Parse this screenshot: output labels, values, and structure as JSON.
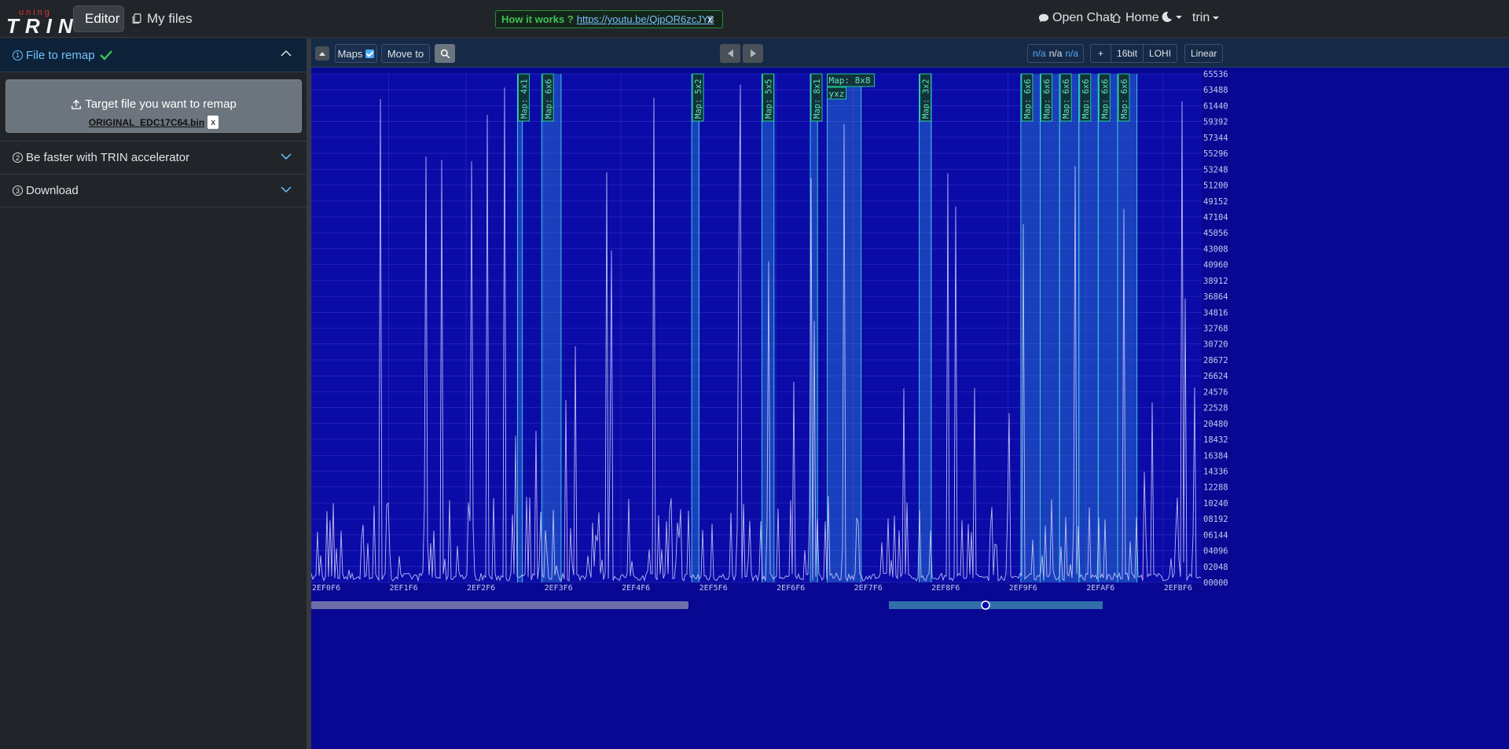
{
  "brand": {
    "small": "uning",
    "big": "RIN",
    "initial": "T"
  },
  "nav": {
    "editor": "Editor",
    "myfiles": "My files"
  },
  "banner": {
    "lead": "How it works ?",
    "link": "https://youtu.be/QjpOR6zcJY8",
    "close": "x"
  },
  "right_nav": {
    "chat": "Open Chat",
    "home": "Home",
    "user": "trin"
  },
  "sidebar": {
    "sections": [
      {
        "num": "1",
        "label": "File to remap",
        "open": true
      },
      {
        "num": "2",
        "label": "Be faster with TRIN accelerator",
        "open": false
      },
      {
        "num": "3",
        "label": "Download",
        "open": false
      }
    ],
    "upload_label": "Target file you want to remap",
    "file_name": "ORIGINAL_EDC17C64.bin",
    "remove": "x"
  },
  "toolbar": {
    "maps": "Maps",
    "maps_checked": true,
    "move_to": "Move to",
    "na1": "n/a",
    "na2": "n/a",
    "na3": "n/a",
    "plus": "+",
    "bits": "16bit",
    "order": "LOHI",
    "scale": "Linear"
  },
  "chart_data": {
    "type": "line",
    "x_ticks": [
      "2EF0F6",
      "2EF1F6",
      "2EF2F6",
      "2EF3F6",
      "2EF4F6",
      "2EF5F6",
      "2EF6F6",
      "2EF7F6",
      "2EF8F6",
      "2EF9F6",
      "2EFAF6",
      "2EFBF6"
    ],
    "y_ticks": [
      "65536",
      "63488",
      "61440",
      "59392",
      "57344",
      "55296",
      "53248",
      "51200",
      "49152",
      "47104",
      "45056",
      "43008",
      "40960",
      "38912",
      "36864",
      "34816",
      "32768",
      "30720",
      "28672",
      "26624",
      "24576",
      "22528",
      "20480",
      "18432",
      "16384",
      "14336",
      "12288",
      "10240",
      "08192",
      "06144",
      "04096",
      "02048",
      "00000"
    ],
    "ylim": [
      0,
      65536
    ],
    "map_labels": [
      {
        "label": "Map: 4x1",
        "x_start": "2EF3A0",
        "x_end": "2EF3B0"
      },
      {
        "label": "Map: 6x6",
        "x_start": "2EF3F0",
        "x_end": "2EF430"
      },
      {
        "label": "Map: 5x2",
        "x_start": "2EF5E0",
        "x_end": "2EF5F8"
      },
      {
        "label": "Map: 5x5",
        "x_start": "2EF6C8",
        "x_end": "2EF6F0"
      },
      {
        "label": "Map: 8x1",
        "x_start": "2EF768",
        "x_end": "2EF780"
      },
      {
        "label": "Map: 8x8",
        "x_start": "2EF7A0",
        "x_end": "2EF810"
      },
      {
        "label": "Map: 3x2",
        "x_start": "2EF8D0",
        "x_end": "2EF8F8"
      },
      {
        "label": "Map: 6x6",
        "x_start": "2EFA20",
        "x_end": "2EFA60"
      },
      {
        "label": "Map: 6x6",
        "x_start": "2EFA60",
        "x_end": "2EFAA0"
      },
      {
        "label": "Map: 6x6",
        "x_start": "2EFAA0",
        "x_end": "2EFAE0"
      },
      {
        "label": "Map: 6x6",
        "x_start": "2EFAE0",
        "x_end": "2EFB20"
      },
      {
        "label": "Map: 6x6",
        "x_start": "2EFB20",
        "x_end": "2EFB60"
      },
      {
        "label": "Map: 6x6",
        "x_start": "2EFB60",
        "x_end": "2EFBA0"
      }
    ],
    "axis_tag": "yxz"
  }
}
